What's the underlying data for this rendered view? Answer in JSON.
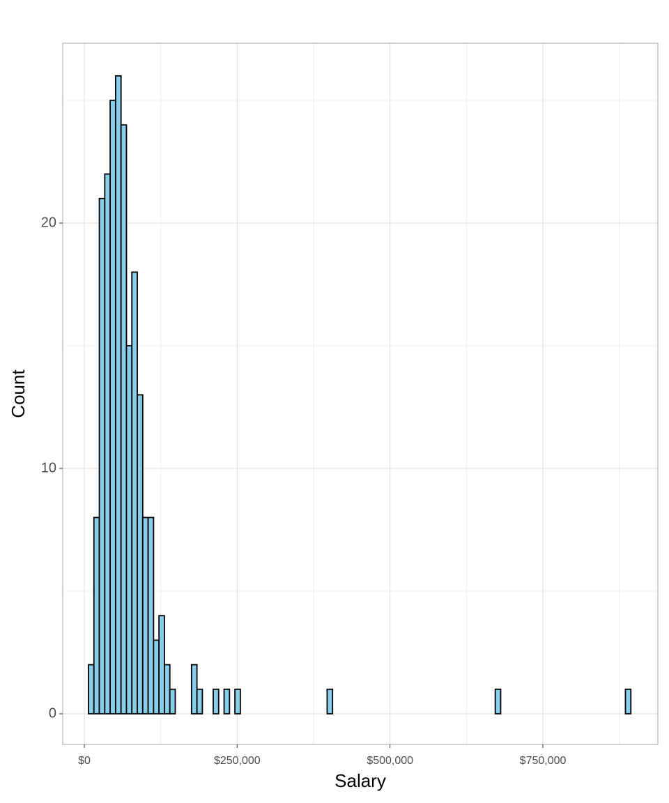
{
  "chart_data": {
    "type": "histogram",
    "x_label": "Salary",
    "y_label": "Count",
    "bins": [
      6840,
      15710,
      24580,
      33450,
      42320,
      51190,
      60060,
      68930,
      77800,
      86670,
      95540,
      104410,
      113280,
      122150,
      131020,
      139890,
      148760,
      157630,
      166500,
      175370,
      184240,
      193110,
      201980,
      210850,
      219720,
      228590,
      237460,
      246330,
      255200,
      264070,
      272940,
      281810,
      290680,
      299550,
      308420,
      317290,
      326160,
      335030,
      343900,
      352770,
      361640,
      370510,
      379380,
      388250,
      397120,
      405990,
      414860,
      423730,
      432600,
      441470,
      450340,
      459210,
      468080,
      476950,
      485820,
      494690,
      503560,
      512430,
      521300,
      530170,
      539040,
      547910,
      556780,
      565650,
      574520,
      583390,
      592260,
      601130,
      610000,
      618870,
      627740,
      636610,
      645480,
      654350,
      663220,
      672090,
      680960,
      689830,
      698700,
      707570,
      716440,
      725310,
      734180,
      743050,
      751920,
      760790,
      769660,
      778530,
      787400,
      796270,
      805140,
      814010,
      822880,
      831750,
      840620,
      849490,
      858360,
      867230,
      876100,
      884970,
      893840
    ],
    "values": [
      2,
      8,
      21,
      22,
      25,
      26,
      24,
      15,
      18,
      13,
      8,
      8,
      3,
      4,
      2,
      1,
      0,
      0,
      0,
      2,
      1,
      0,
      0,
      1,
      0,
      1,
      0,
      1,
      0,
      0,
      0,
      0,
      0,
      0,
      0,
      0,
      0,
      0,
      0,
      0,
      0,
      0,
      0,
      0,
      1,
      0,
      0,
      0,
      0,
      0,
      0,
      0,
      0,
      0,
      0,
      0,
      0,
      0,
      0,
      0,
      0,
      0,
      0,
      0,
      0,
      0,
      0,
      0,
      0,
      0,
      0,
      0,
      0,
      0,
      0,
      1,
      0,
      0,
      0,
      0,
      0,
      0,
      0,
      0,
      0,
      0,
      0,
      0,
      0,
      0,
      0,
      0,
      0,
      0,
      0,
      0,
      0,
      0,
      0,
      1
    ],
    "color": "#87ceeb",
    "edge_color": "#000000",
    "xlim": [
      -35300,
      938000
    ],
    "xticks": [
      {
        "value": 0,
        "label": "$0"
      },
      {
        "value": 250000,
        "label": "$250,000"
      },
      {
        "value": 500000,
        "label": "$500,000"
      },
      {
        "value": 750000,
        "label": "$750,000"
      }
    ],
    "x_minor_ticks": [
      125000,
      375000,
      625000,
      875000
    ],
    "ylim": [
      -1.25,
      27.33
    ],
    "yticks": [
      0,
      10,
      20
    ],
    "y_minor_ticks": [
      5,
      15,
      25
    ],
    "grid": true
  }
}
